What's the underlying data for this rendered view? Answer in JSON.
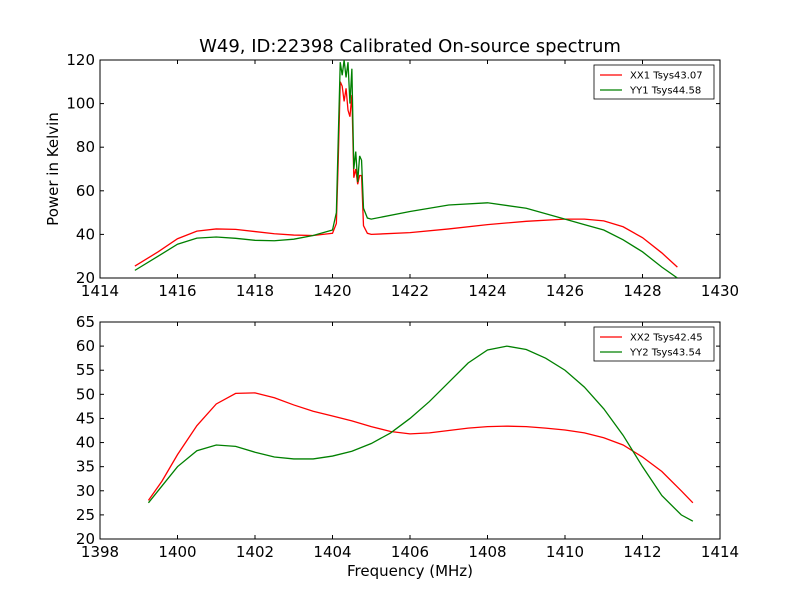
{
  "chart_data": [
    {
      "type": "line",
      "title": "W49, ID:22398 Calibrated On-source spectrum",
      "xlabel": "",
      "ylabel": "Power in Kelvin",
      "xlim": [
        1414,
        1430
      ],
      "ylim": [
        20,
        120
      ],
      "xticks": [
        1414,
        1416,
        1418,
        1420,
        1422,
        1424,
        1426,
        1428,
        1430
      ],
      "yticks": [
        20,
        40,
        60,
        80,
        100,
        120
      ],
      "grid": false,
      "legend_position": "top-right",
      "series": [
        {
          "name": "XX1 Tsys43.07",
          "color": "#ff0000",
          "x": [
            1414.9,
            1415.5,
            1416.0,
            1416.5,
            1417.0,
            1417.5,
            1418.0,
            1418.5,
            1419.0,
            1419.5,
            1420.0,
            1420.1,
            1420.15,
            1420.2,
            1420.25,
            1420.3,
            1420.35,
            1420.4,
            1420.45,
            1420.5,
            1420.55,
            1420.6,
            1420.65,
            1420.7,
            1420.75,
            1420.8,
            1420.9,
            1421.0,
            1422.0,
            1423.0,
            1424.0,
            1425.0,
            1426.0,
            1426.5,
            1427.0,
            1427.5,
            1428.0,
            1428.5,
            1428.9
          ],
          "y": [
            25.5,
            32,
            38,
            41.5,
            42.5,
            42.3,
            41.3,
            40.3,
            39.7,
            39.5,
            40.5,
            45,
            75,
            110,
            108,
            101,
            107,
            97,
            94,
            104,
            66,
            70,
            63,
            67,
            67,
            44,
            40.5,
            40,
            40.8,
            42.5,
            44.5,
            46,
            47,
            47,
            46.2,
            43.5,
            38.5,
            31.5,
            25
          ]
        },
        {
          "name": "YY1 Tsys44.58",
          "color": "#008000",
          "x": [
            1414.9,
            1415.5,
            1416.0,
            1416.5,
            1417.0,
            1417.5,
            1418.0,
            1418.5,
            1419.0,
            1419.5,
            1420.0,
            1420.1,
            1420.15,
            1420.2,
            1420.25,
            1420.3,
            1420.35,
            1420.4,
            1420.45,
            1420.5,
            1420.55,
            1420.6,
            1420.65,
            1420.7,
            1420.75,
            1420.8,
            1420.9,
            1421.0,
            1422.0,
            1423.0,
            1424.0,
            1425.0,
            1426.0,
            1426.5,
            1427.0,
            1427.5,
            1428.0,
            1428.5,
            1428.9
          ],
          "y": [
            23.5,
            30,
            35.5,
            38.3,
            38.8,
            38.2,
            37.3,
            37.1,
            37.8,
            39.5,
            42,
            50,
            85,
            119,
            113,
            120,
            112,
            119,
            100,
            116,
            70,
            78,
            64,
            76,
            74,
            52,
            47.5,
            47,
            50.5,
            53.5,
            54.5,
            52,
            47,
            44.5,
            42,
            37.5,
            32,
            25,
            20
          ]
        }
      ]
    },
    {
      "type": "line",
      "title": "",
      "xlabel": "Frequency (MHz)",
      "ylabel": "",
      "xlim": [
        1398,
        1414
      ],
      "ylim": [
        20,
        65
      ],
      "xticks": [
        1398,
        1400,
        1402,
        1404,
        1406,
        1408,
        1410,
        1412,
        1414
      ],
      "yticks": [
        20,
        25,
        30,
        35,
        40,
        45,
        50,
        55,
        60,
        65
      ],
      "grid": false,
      "legend_position": "top-right",
      "series": [
        {
          "name": "XX2 Tsys42.45",
          "color": "#ff0000",
          "x": [
            1399.25,
            1399.6,
            1400.0,
            1400.5,
            1401.0,
            1401.5,
            1402.0,
            1402.5,
            1403.0,
            1403.5,
            1404.0,
            1404.5,
            1405.0,
            1405.5,
            1406.0,
            1406.5,
            1407.0,
            1407.5,
            1408.0,
            1408.5,
            1409.0,
            1409.5,
            1410.0,
            1410.5,
            1411.0,
            1411.5,
            1412.0,
            1412.5,
            1413.0,
            1413.3
          ],
          "y": [
            28,
            32,
            37.5,
            43.5,
            48,
            50.2,
            50.3,
            49.3,
            47.8,
            46.5,
            45.5,
            44.5,
            43.3,
            42.3,
            41.8,
            42,
            42.5,
            43,
            43.3,
            43.4,
            43.3,
            43,
            42.6,
            42,
            41,
            39.5,
            37,
            34,
            30,
            27.5
          ]
        },
        {
          "name": "YY2 Tsys43.54",
          "color": "#008000",
          "x": [
            1399.25,
            1399.6,
            1400.0,
            1400.5,
            1401.0,
            1401.5,
            1402.0,
            1402.5,
            1403.0,
            1403.5,
            1404.0,
            1404.5,
            1405.0,
            1405.5,
            1406.0,
            1406.5,
            1407.0,
            1407.5,
            1408.0,
            1408.5,
            1409.0,
            1409.5,
            1410.0,
            1410.5,
            1411.0,
            1411.5,
            1412.0,
            1412.5,
            1413.0,
            1413.3
          ],
          "y": [
            27.5,
            31,
            35,
            38.3,
            39.5,
            39.2,
            38,
            37,
            36.6,
            36.6,
            37.2,
            38.2,
            39.8,
            42,
            45,
            48.5,
            52.5,
            56.5,
            59.2,
            60,
            59.3,
            57.5,
            55,
            51.5,
            47,
            41.5,
            35,
            29,
            25,
            23.7
          ]
        }
      ]
    }
  ]
}
